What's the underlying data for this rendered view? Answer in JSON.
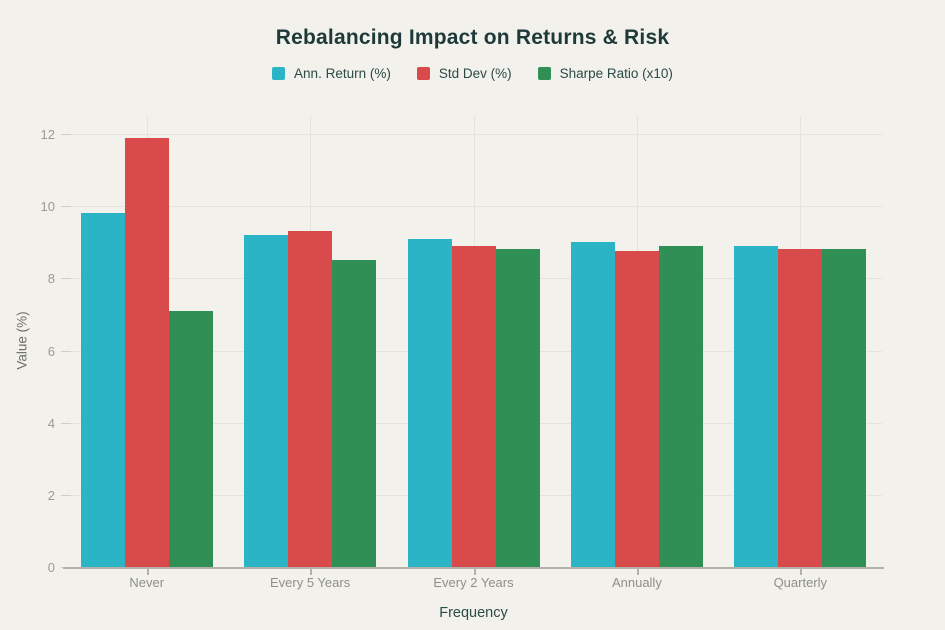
{
  "title": "Rebalancing Impact on Returns & Risk",
  "colors": {
    "background": "#f2f1ec",
    "title_text": "#1e3a38",
    "legend_text": "#2c4a46",
    "tick_text": "#9b9b95",
    "category_text": "#8f8f89",
    "grid": "#e4e4de",
    "baseline": "#b2b2aa",
    "series_cyan": "#2ab4c6",
    "series_red": "#d94b4b",
    "series_green": "#2f8f55"
  },
  "chart_data": {
    "type": "bar",
    "title": "Rebalancing Impact on Returns & Risk",
    "categories": [
      "Never",
      "Every 5 Years",
      "Every 2 Years",
      "Annually",
      "Quarterly"
    ],
    "series": [
      {
        "name": "Ann. Return (%)",
        "color": "#2ab4c6",
        "values": [
          9.8,
          9.2,
          9.1,
          9.0,
          8.9
        ]
      },
      {
        "name": "Std Dev (%)",
        "color": "#d94b4b",
        "values": [
          11.9,
          9.3,
          8.9,
          8.75,
          8.8
        ]
      },
      {
        "name": "Sharpe Ratio (x10)",
        "color": "#2f8f55",
        "values": [
          7.1,
          8.5,
          8.8,
          8.9,
          8.8
        ]
      }
    ],
    "xlabel": "Frequency",
    "ylabel": "Value (%)",
    "ylim": [
      0,
      12
    ],
    "ytick_step": 2,
    "yticks": [
      0,
      2,
      4,
      6,
      8,
      10,
      12
    ],
    "grid": true,
    "legend_position": "top"
  }
}
